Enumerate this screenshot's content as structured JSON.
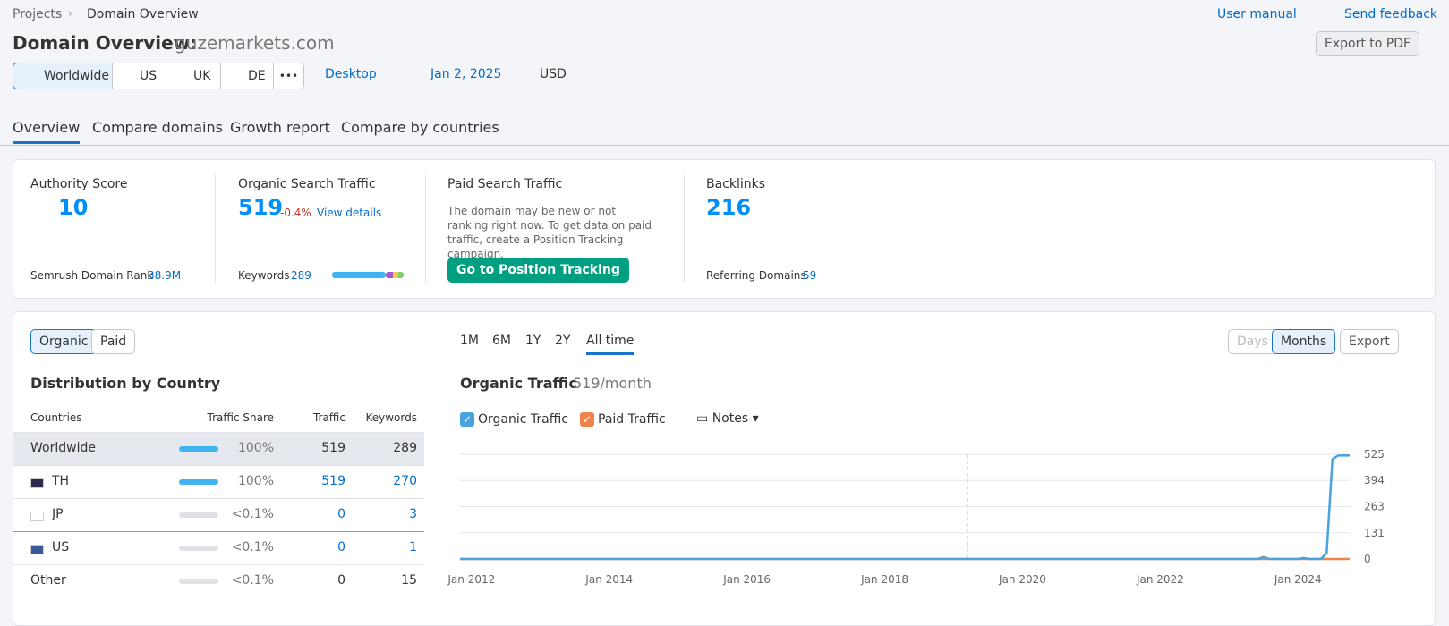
{
  "breadcrumb": [
    "Projects",
    "Domain Overview"
  ],
  "header": {
    "title": "Domain Overview:",
    "domain": "guzemarkets.com",
    "user_manual": "User manual",
    "send_feedback": "Send feedback",
    "export_pdf": "Export to PDF"
  },
  "filters": {
    "regions": [
      "Worldwide",
      "US",
      "UK",
      "DE"
    ],
    "more": "•••",
    "device": "Desktop",
    "date": "Jan 2, 2025",
    "currency": "USD"
  },
  "tabs": [
    "Overview",
    "Compare domains",
    "Growth report",
    "Compare by countries"
  ],
  "summary": {
    "authority": {
      "label": "Authority Score",
      "value": 10,
      "sub_label": "Semrush Domain Rank",
      "sub_value": "38.9M"
    },
    "organic": {
      "label": "Organic Search Traffic",
      "value": 519,
      "change": "-0.4%",
      "link": "View details",
      "sub_label": "Keywords",
      "sub_value": 289
    },
    "paid": {
      "label": "Paid Search Traffic",
      "text": "The domain may be new or not ranking right now. To get data on paid traffic, create a Position Tracking campaign.",
      "button": "Go to Position Tracking"
    },
    "backlinks": {
      "label": "Backlinks",
      "value": 216,
      "sub_label": "Referring Domains",
      "sub_value": 59
    }
  },
  "panel": {
    "toggle": [
      "Organic",
      "Paid"
    ],
    "periods": [
      "1M",
      "6M",
      "1Y",
      "2Y",
      "All time"
    ],
    "granularity": [
      "Days",
      "Months"
    ],
    "export": "Export"
  },
  "distribution": {
    "title": "Distribution by Country",
    "columns": [
      "Countries",
      "Traffic Share",
      "Traffic",
      "Keywords"
    ],
    "rows": [
      [
        "Worldwide",
        "100%",
        519,
        289
      ],
      [
        "TH",
        "100%",
        519,
        270
      ],
      [
        "JP",
        "<0.1%",
        0,
        3
      ],
      [
        "US",
        "<0.1%",
        0,
        1
      ],
      [
        "Other",
        "<0.1%",
        0,
        15
      ]
    ]
  },
  "chart_data": {
    "type": "line",
    "title": "Organic Traffic",
    "subtitle": "519/month",
    "notes": "Notes",
    "x": [
      "2011-11",
      "2023-06",
      "2023-07",
      "2023-08",
      "2024-01",
      "2024-02",
      "2024-03",
      "2024-05",
      "2024-06",
      "2024-07",
      "2024-08",
      "2024-10"
    ],
    "series": [
      {
        "name": "Organic Traffic",
        "color": "#4aa3df",
        "values": [
          0,
          0,
          10,
          0,
          0,
          5,
          0,
          0,
          30,
          500,
          519,
          519
        ]
      },
      {
        "name": "Paid Traffic",
        "color": "#f0834a",
        "values": [
          0,
          0,
          0,
          0,
          0,
          0,
          0,
          0,
          0,
          0,
          0,
          0
        ]
      }
    ],
    "ylim": [
      0,
      525
    ],
    "yticks": [
      0,
      131,
      263,
      394,
      525
    ],
    "xlim": [
      "2011-11",
      "2024-10"
    ],
    "xticks": [
      {
        "value": "2012-01",
        "label": "Jan 2012"
      },
      {
        "value": "2014-01",
        "label": "Jan 2014"
      },
      {
        "value": "2016-01",
        "label": "Jan 2016"
      },
      {
        "value": "2018-01",
        "label": "Jan 2018"
      },
      {
        "value": "2020-01",
        "label": "Jan 2020"
      },
      {
        "value": "2022-01",
        "label": "Jan 2022"
      },
      {
        "value": "2024-01",
        "label": "Jan 2024"
      }
    ],
    "grid": true
  }
}
